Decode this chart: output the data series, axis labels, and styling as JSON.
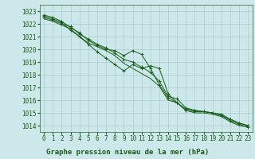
{
  "title": "Graphe pression niveau de la mer (hPa)",
  "background_color": "#cce8ea",
  "plot_bg_color": "#cce8ea",
  "grid_color": "#aacccc",
  "line_color": "#1a5c1a",
  "xlim": [
    -0.5,
    23.5
  ],
  "ylim": [
    1013.5,
    1023.5
  ],
  "yticks": [
    1014,
    1015,
    1016,
    1017,
    1018,
    1019,
    1020,
    1021,
    1022,
    1023
  ],
  "xticks": [
    0,
    1,
    2,
    3,
    4,
    5,
    6,
    7,
    8,
    9,
    10,
    11,
    12,
    13,
    14,
    15,
    16,
    17,
    18,
    19,
    20,
    21,
    22,
    23
  ],
  "series": [
    [
      1022.5,
      1022.3,
      1022.0,
      1021.8,
      1021.2,
      1020.8,
      1020.4,
      1020.1,
      1019.7,
      1019.2,
      1019.0,
      1018.6,
      1018.2,
      1017.5,
      1016.3,
      1016.1,
      1015.4,
      1015.2,
      1015.1,
      1015.0,
      1014.8,
      1014.5,
      1014.2,
      1014.0
    ],
    [
      1022.4,
      1022.2,
      1021.9,
      1021.6,
      1021.0,
      1020.5,
      1020.2,
      1019.9,
      1019.5,
      1018.9,
      1018.5,
      1018.1,
      1017.7,
      1017.1,
      1016.0,
      1015.8,
      1015.2,
      1015.0,
      1015.0,
      1014.9,
      1014.7,
      1014.3,
      1014.0,
      1013.9
    ],
    [
      1022.6,
      1022.4,
      1022.1,
      1021.5,
      1021.0,
      1020.4,
      1019.8,
      1019.3,
      1018.8,
      1018.3,
      1018.8,
      1018.5,
      1018.7,
      1018.5,
      1016.5,
      1015.8,
      1015.2,
      1015.1,
      1015.1,
      1015.0,
      1014.8,
      1014.4,
      1014.1,
      1013.9
    ],
    [
      1022.7,
      1022.5,
      1022.2,
      1021.7,
      1021.3,
      1020.7,
      1020.3,
      1020.0,
      1019.9,
      1019.5,
      1019.9,
      1019.6,
      1018.5,
      1017.2,
      1016.2,
      1015.8,
      1015.3,
      1015.2,
      1015.1,
      1015.0,
      1014.9,
      1014.5,
      1014.2,
      1014.0
    ]
  ],
  "marker_series": [
    0,
    2,
    3
  ],
  "tick_fontsize": 5.5,
  "title_fontsize": 6.5,
  "title_color": "#1a5c1a",
  "spine_color": "#336633"
}
